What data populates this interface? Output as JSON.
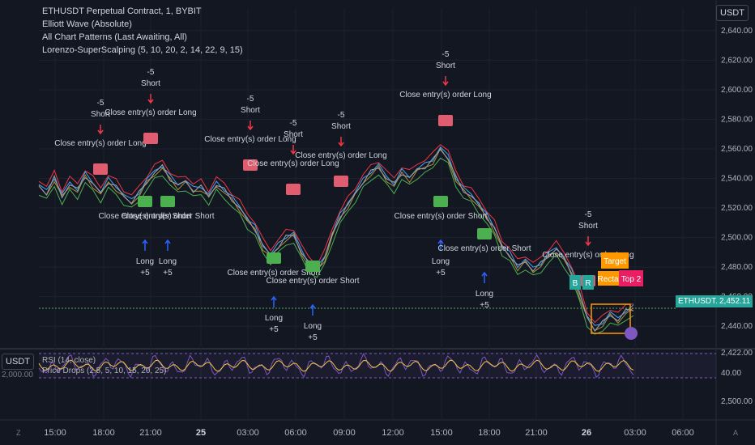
{
  "legend": {
    "symbol": "ETHUSDT Perpetual Contract, 1, BYBIT",
    "ind1": "Elliott Wave (Absolute)",
    "ind2": "All Chart Patterns (Last Awaiting, All)",
    "ind3": "Lorenzo-SuperScalping (5, 10, 20, 2, 14, 22, 9, 15)"
  },
  "rsi_legend": {
    "line1": "RSI (14, close)",
    "line2": "Price Drops (2.5, 5, 10, 15, 20, 25)",
    "left_value": "2,000.00"
  },
  "currency_top": "USDT",
  "currency_left": "USDT",
  "last_price": {
    "label": "ETHUSDT.P",
    "value": "2,452.11",
    "color": "#26a69a"
  },
  "bottom_left_icon": "Z",
  "bottom_right_icon": "A",
  "pattern_labels": {
    "target": "Target",
    "rectangle": "Rectangle",
    "top2": "Top 2",
    "r": "R",
    "b": "B"
  },
  "colors": {
    "background": "#131722",
    "long": "#4caf50",
    "short": "#f23645",
    "arrow_up": "#2962ff",
    "arrow_down": "#f23645",
    "rsi": "#7e57c2",
    "rsi_ma": "#f5c542"
  },
  "chart_data": {
    "type": "line",
    "yticks": [
      "2,640.00",
      "2,620.00",
      "2,600.00",
      "2,580.00",
      "2,560.00",
      "2,540.00",
      "2,520.00",
      "2,500.00",
      "2,480.00",
      "2,460.00",
      "2,440.00",
      "2,422.00"
    ],
    "yvalues": [
      2640,
      2620,
      2600,
      2580,
      2560,
      2540,
      2520,
      2500,
      2480,
      2460,
      2440,
      2422
    ],
    "ylim": [
      2422,
      2652
    ],
    "rsi_ticks": [
      "40.00",
      "2,500.00"
    ],
    "xticks": [
      "15:00",
      "18:00",
      "21:00",
      "25",
      "03:00",
      "06:00",
      "09:00",
      "12:00",
      "15:00",
      "18:00",
      "21:00",
      "26",
      "03:00",
      "06:00"
    ],
    "bold_xticks": [
      "25",
      "26"
    ],
    "price_series": [
      [
        0,
        2535
      ],
      [
        3,
        2530
      ],
      [
        6,
        2540
      ],
      [
        9,
        2528
      ],
      [
        12,
        2536
      ],
      [
        15,
        2532
      ],
      [
        18,
        2542
      ],
      [
        21,
        2536
      ],
      [
        24,
        2530
      ],
      [
        27,
        2538
      ],
      [
        30,
        2534
      ],
      [
        33,
        2528
      ],
      [
        36,
        2524
      ],
      [
        39,
        2530
      ],
      [
        42,
        2538
      ],
      [
        45,
        2544
      ],
      [
        48,
        2548
      ],
      [
        51,
        2540
      ],
      [
        54,
        2535
      ],
      [
        57,
        2538
      ],
      [
        60,
        2532
      ],
      [
        63,
        2534
      ],
      [
        66,
        2528
      ],
      [
        69,
        2536
      ],
      [
        72,
        2532
      ],
      [
        75,
        2526
      ],
      [
        78,
        2520
      ],
      [
        81,
        2512
      ],
      [
        84,
        2506
      ],
      [
        87,
        2494
      ],
      [
        90,
        2488
      ],
      [
        93,
        2494
      ],
      [
        96,
        2500
      ],
      [
        99,
        2502
      ],
      [
        102,
        2490
      ],
      [
        105,
        2482
      ],
      [
        108,
        2478
      ],
      [
        111,
        2486
      ],
      [
        114,
        2502
      ],
      [
        117,
        2514
      ],
      [
        120,
        2522
      ],
      [
        123,
        2530
      ],
      [
        126,
        2538
      ],
      [
        129,
        2544
      ],
      [
        132,
        2548
      ],
      [
        135,
        2540
      ],
      [
        138,
        2536
      ],
      [
        141,
        2544
      ],
      [
        144,
        2540
      ],
      [
        147,
        2546
      ],
      [
        150,
        2548
      ],
      [
        153,
        2552
      ],
      [
        156,
        2560
      ],
      [
        159,
        2554
      ],
      [
        162,
        2540
      ],
      [
        165,
        2532
      ],
      [
        168,
        2528
      ],
      [
        171,
        2522
      ],
      [
        174,
        2514
      ],
      [
        177,
        2506
      ],
      [
        180,
        2494
      ],
      [
        183,
        2488
      ],
      [
        186,
        2480
      ],
      [
        189,
        2484
      ],
      [
        192,
        2478
      ],
      [
        195,
        2482
      ],
      [
        198,
        2488
      ],
      [
        201,
        2492
      ],
      [
        204,
        2486
      ],
      [
        207,
        2476
      ],
      [
        210,
        2462
      ],
      [
        213,
        2446
      ],
      [
        216,
        2438
      ],
      [
        219,
        2442
      ],
      [
        222,
        2448
      ],
      [
        225,
        2444
      ],
      [
        228,
        2450
      ],
      [
        231,
        2452
      ]
    ],
    "x_domain": [
      0,
      231
    ],
    "signals": [
      {
        "type": "short",
        "label": "Short",
        "value": "-5",
        "text": "Close entry(s) order Long"
      },
      {
        "type": "long",
        "label": "Long",
        "value": "+5",
        "text": "Close entry(s) order Short"
      }
    ],
    "grid": true,
    "legend_position": "top-left"
  }
}
